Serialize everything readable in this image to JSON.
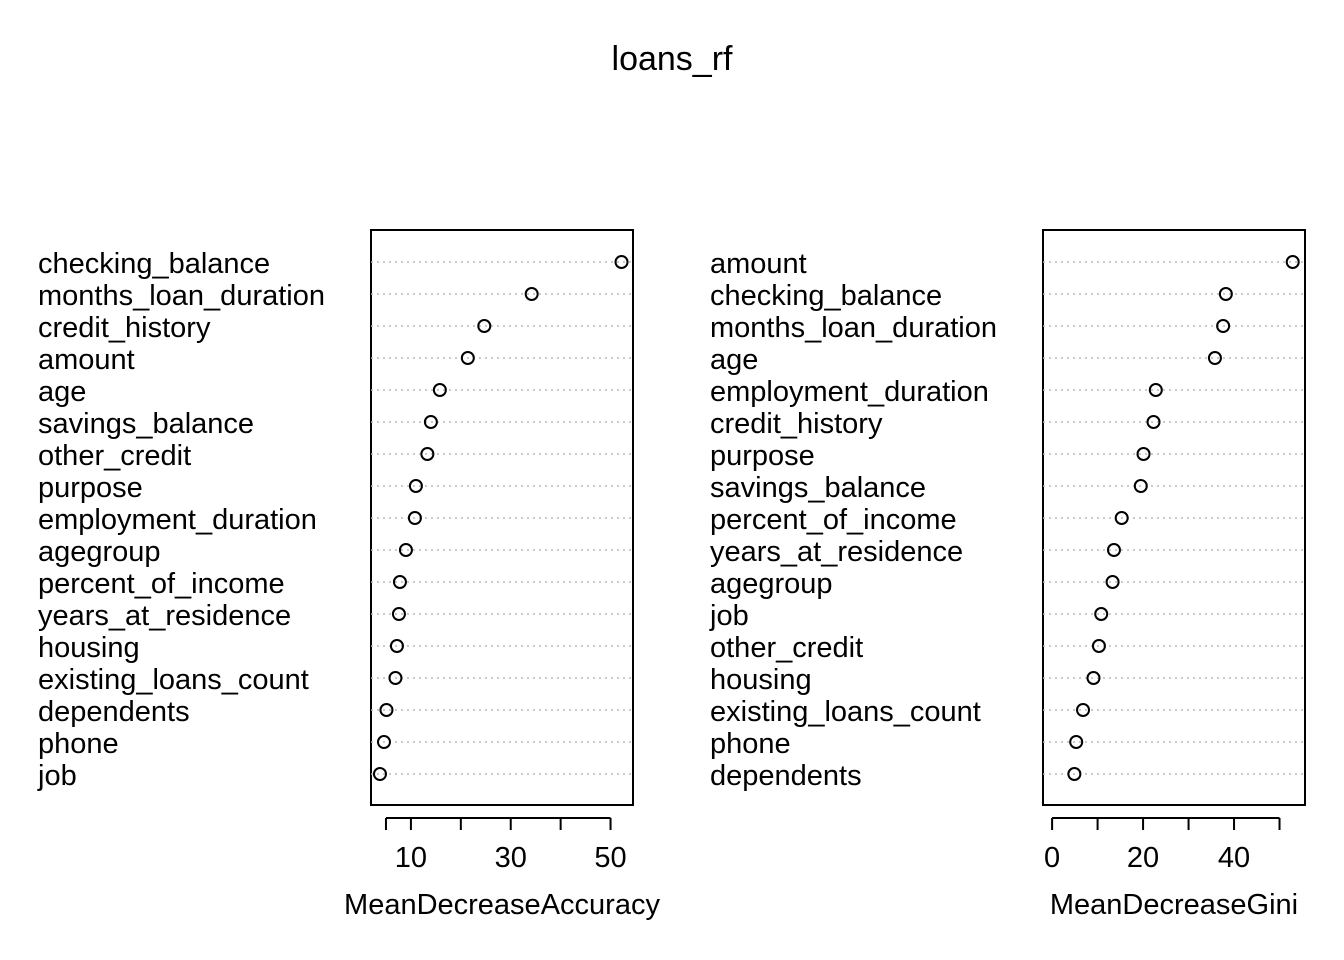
{
  "title": "loans_rf",
  "chart_data": [
    {
      "type": "scatter",
      "subtype": "dotchart",
      "xlabel": "MeanDecreaseAccuracy",
      "xlim": [
        2,
        54.5
      ],
      "xticks": [
        5,
        10,
        20,
        30,
        40,
        50
      ],
      "xtick_labels": [
        "",
        "10",
        "",
        "30",
        "",
        "50"
      ],
      "categories": [
        "checking_balance",
        "months_loan_duration",
        "credit_history",
        "amount",
        "age",
        "savings_balance",
        "other_credit",
        "purpose",
        "employment_duration",
        "agegroup",
        "percent_of_income",
        "years_at_residence",
        "housing",
        "existing_loans_count",
        "dependents",
        "phone",
        "job"
      ],
      "values": [
        52.2,
        34.2,
        24.7,
        21.4,
        15.8,
        14.0,
        13.3,
        11.0,
        10.8,
        9.0,
        7.8,
        7.6,
        7.2,
        6.9,
        5.1,
        4.6,
        3.8
      ],
      "grid": true
    },
    {
      "type": "scatter",
      "subtype": "dotchart",
      "xlabel": "MeanDecreaseGini",
      "xlim": [
        -2,
        55.6
      ],
      "xticks": [
        0,
        10,
        20,
        30,
        40,
        50
      ],
      "xtick_labels": [
        "0",
        "",
        "20",
        "",
        "40",
        ""
      ],
      "categories": [
        "amount",
        "checking_balance",
        "months_loan_duration",
        "age",
        "employment_duration",
        "credit_history",
        "purpose",
        "savings_balance",
        "percent_of_income",
        "years_at_residence",
        "agegroup",
        "job",
        "other_credit",
        "housing",
        "existing_loans_count",
        "phone",
        "dependents"
      ],
      "values": [
        52.9,
        38.2,
        37.6,
        35.8,
        22.8,
        22.3,
        20.1,
        19.5,
        15.3,
        13.6,
        13.3,
        10.8,
        10.3,
        9.1,
        6.8,
        5.3,
        4.9
      ],
      "grid": true
    }
  ]
}
